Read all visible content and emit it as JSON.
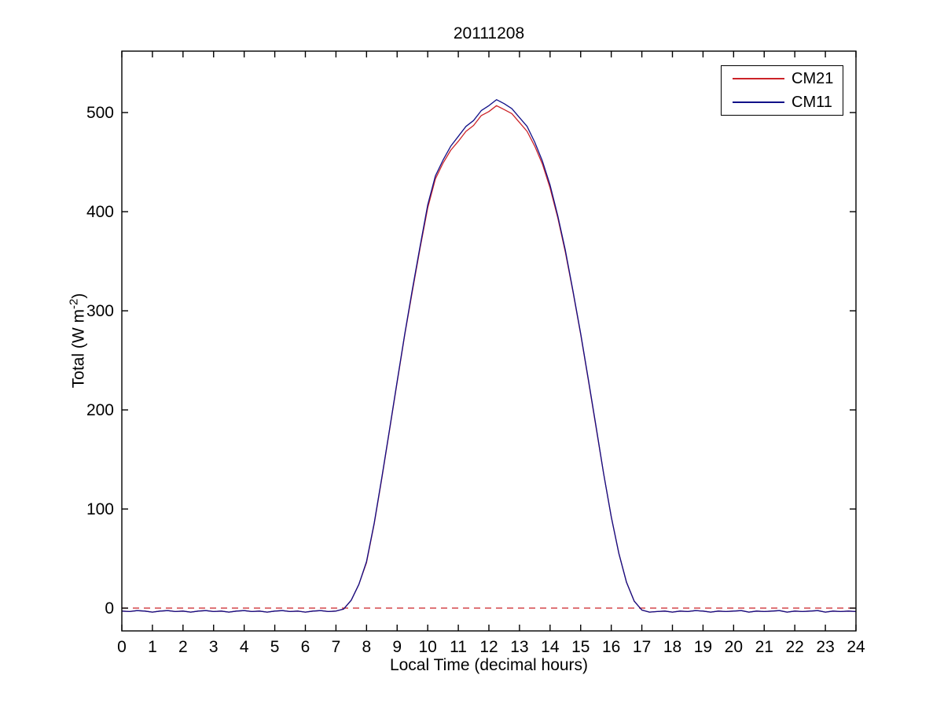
{
  "figure": {
    "title": "20111208",
    "xlabel": "Local Time (decimal hours)",
    "ylabel_main": "Total (W m",
    "ylabel_sup": "-2",
    "ylabel_close": ")"
  },
  "colors": {
    "background": "#ffffff",
    "axis": "#000000",
    "text": "#000000",
    "cm21_red": "#cc2328",
    "cm11_blue": "#101088"
  },
  "chart_data": {
    "type": "line",
    "title": "20111208",
    "xlabel": "Local Time (decimal hours)",
    "ylabel": "Total (W m^-2)",
    "xlim": [
      0,
      24
    ],
    "ylim": [
      -23,
      562
    ],
    "x_ticks": [
      0,
      1,
      2,
      3,
      4,
      5,
      6,
      7,
      8,
      9,
      10,
      11,
      12,
      13,
      14,
      15,
      16,
      17,
      18,
      19,
      20,
      21,
      22,
      23,
      24
    ],
    "y_ticks": [
      0,
      100,
      200,
      300,
      400,
      500
    ],
    "grid": false,
    "legend_position": "top-right",
    "zero_line": {
      "y": 0,
      "style": "dashed",
      "color": "#cc2328"
    },
    "x_step_hours": 0.25,
    "x": [
      0,
      0.25,
      0.5,
      0.75,
      1,
      1.25,
      1.5,
      1.75,
      2,
      2.25,
      2.5,
      2.75,
      3,
      3.25,
      3.5,
      3.75,
      4,
      4.25,
      4.5,
      4.75,
      5,
      5.25,
      5.5,
      5.75,
      6,
      6.25,
      6.5,
      6.75,
      7,
      7.25,
      7.5,
      7.75,
      8,
      8.25,
      8.5,
      8.75,
      9,
      9.25,
      9.5,
      9.75,
      10,
      10.25,
      10.5,
      10.75,
      11,
      11.25,
      11.5,
      11.75,
      12,
      12.25,
      12.5,
      12.75,
      13,
      13.25,
      13.5,
      13.75,
      14,
      14.25,
      14.5,
      14.75,
      15,
      15.25,
      15.5,
      15.75,
      16,
      16.25,
      16.5,
      16.75,
      17,
      17.25,
      17.5,
      17.75,
      18,
      18.25,
      18.5,
      18.75,
      19,
      19.25,
      19.5,
      19.75,
      20,
      20.25,
      20.5,
      20.75,
      21,
      21.25,
      21.5,
      21.75,
      22,
      22.25,
      22.5,
      22.75,
      23,
      23.25,
      23.5,
      23.75,
      24
    ],
    "series": [
      {
        "name": "CM21",
        "color": "#cc2328",
        "values": [
          -3,
          -3.5,
          -2.5,
          -3,
          -4,
          -3,
          -2.5,
          -3.5,
          -3,
          -4,
          -3,
          -2.5,
          -3.5,
          -3,
          -4,
          -3,
          -2.5,
          -3.5,
          -3,
          -4,
          -3,
          -2.5,
          -3.5,
          -3,
          -4,
          -3,
          -2.5,
          -3.5,
          -3,
          -1,
          8,
          24,
          46,
          85,
          131,
          179,
          228,
          276,
          320,
          363,
          404,
          433,
          449,
          462,
          471,
          481,
          487,
          497,
          501,
          507,
          503,
          499,
          490,
          481,
          466,
          448,
          424,
          394,
          359,
          319,
          276,
          230,
          183,
          136,
          92,
          55,
          26,
          7,
          -2,
          -4,
          -3.5,
          -3,
          -4,
          -3,
          -3.5,
          -2.5,
          -3,
          -4,
          -3,
          -3.5,
          -3,
          -2.5,
          -4,
          -3,
          -3.5,
          -3,
          -2.5,
          -4,
          -3,
          -3.5,
          -3,
          -2.5,
          -4,
          -3,
          -3.5,
          -3,
          -3.5
        ]
      },
      {
        "name": "CM11",
        "color": "#101088",
        "values": [
          -3,
          -3.5,
          -2.5,
          -3,
          -4,
          -3,
          -2.5,
          -3.5,
          -3,
          -4,
          -3,
          -2.5,
          -3.5,
          -3,
          -4,
          -3,
          -2.5,
          -3.5,
          -3,
          -4,
          -3,
          -2.5,
          -3.5,
          -3,
          -4,
          -3,
          -2.5,
          -3.5,
          -3,
          -1,
          8,
          24,
          47,
          86,
          132,
          180,
          229,
          277,
          322,
          365,
          407,
          436,
          452,
          466,
          476,
          486,
          492,
          502,
          507,
          513,
          509,
          504,
          495,
          486,
          470,
          451,
          427,
          396,
          361,
          320,
          277,
          231,
          184,
          136,
          92,
          55,
          26,
          7,
          -2,
          -4,
          -3.5,
          -3,
          -4,
          -3,
          -3.5,
          -2.5,
          -3,
          -4,
          -3,
          -3.5,
          -3,
          -2.5,
          -4,
          -3,
          -3.5,
          -3,
          -2.5,
          -4,
          -3,
          -3.5,
          -3,
          -2.5,
          -4,
          -3,
          -3.5,
          -3,
          -3.5
        ]
      }
    ]
  }
}
